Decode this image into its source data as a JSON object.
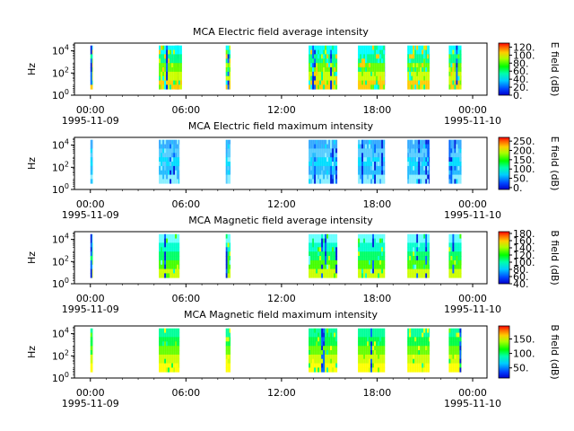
{
  "time_ticks": [
    {
      "label": "00:00",
      "date": "1995-11-09",
      "hours": 0
    },
    {
      "label": "06:00",
      "date": "",
      "hours": 6
    },
    {
      "label": "12:00",
      "date": "",
      "hours": 12
    },
    {
      "label": "18:00",
      "date": "",
      "hours": 18
    },
    {
      "label": "00:00",
      "date": "1995-11-10",
      "hours": 24
    }
  ],
  "chart_data": [
    {
      "type": "heatmap",
      "title": "MCA  Electric field average intensity",
      "ylabel": "Hz",
      "yscale": "log",
      "ylim": [
        1,
        50000
      ],
      "yticks": [
        {
          "base": "10",
          "exp": "0",
          "value": 1
        },
        {
          "base": "10",
          "exp": "2",
          "value": 100
        },
        {
          "base": "10",
          "exp": "4",
          "value": 10000
        }
      ],
      "xlim_hours": [
        -1,
        24.9
      ],
      "colorbar": {
        "label": "E field (dB)",
        "range": [
          0,
          130
        ],
        "ticks": [
          "0.",
          "20.",
          "40.",
          "60.",
          "80.",
          "100.",
          "120."
        ],
        "tick_values": [
          0,
          20,
          40,
          60,
          80,
          100,
          120
        ]
      },
      "segments": [
        [
          0,
          0.15
        ],
        [
          4.3,
          5.6
        ],
        [
          5.3,
          5.75
        ],
        [
          8.5,
          8.8
        ],
        [
          13.7,
          15.5
        ],
        [
          16.8,
          18.5
        ],
        [
          19.9,
          21.3
        ],
        [
          22.5,
          23.3
        ]
      ],
      "palette": [
        "#00ffff",
        "#00ff88",
        "#66ff00",
        "#ccff00",
        "#ffcc00"
      ],
      "noise": 0.35,
      "dark_cols": 0.05
    },
    {
      "type": "heatmap",
      "title": "MCA  Electric field maximum intensity",
      "ylabel": "Hz",
      "yscale": "log",
      "ylim": [
        1,
        50000
      ],
      "yticks": [
        {
          "base": "10",
          "exp": "0",
          "value": 1
        },
        {
          "base": "10",
          "exp": "2",
          "value": 100
        },
        {
          "base": "10",
          "exp": "4",
          "value": 10000
        }
      ],
      "xlim_hours": [
        -1,
        24.9
      ],
      "colorbar": {
        "label": "E field (dB)",
        "range": [
          -10,
          270
        ],
        "ticks": [
          "0.",
          "50.",
          "100.",
          "150.",
          "200.",
          "250."
        ],
        "tick_values": [
          0,
          50,
          100,
          150,
          200,
          250
        ]
      },
      "segments": [
        [
          0,
          0.15
        ],
        [
          4.3,
          5.6
        ],
        [
          8.5,
          8.8
        ],
        [
          13.7,
          15.5
        ],
        [
          16.8,
          18.5
        ],
        [
          19.9,
          21.3
        ],
        [
          22.5,
          23.3
        ]
      ],
      "palette": [
        "#33aaff",
        "#55ccff",
        "#00ddff",
        "#22bbff",
        "#88eeff"
      ],
      "noise": 0.3,
      "dark_cols": 0.25
    },
    {
      "type": "heatmap",
      "title": "MCA  Magnetic field average intensity",
      "ylabel": "Hz",
      "yscale": "log",
      "ylim": [
        1,
        50000
      ],
      "yticks": [
        {
          "base": "10",
          "exp": "0",
          "value": 1
        },
        {
          "base": "10",
          "exp": "2",
          "value": 100
        },
        {
          "base": "10",
          "exp": "4",
          "value": 10000
        }
      ],
      "xlim_hours": [
        -1,
        24.9
      ],
      "colorbar": {
        "label": "B field (dB)",
        "range": [
          40,
          185
        ],
        "ticks": [
          "40.",
          "60.",
          "80.",
          "100.",
          "120.",
          "140.",
          "160.",
          "180."
        ],
        "tick_values": [
          40,
          60,
          80,
          100,
          120,
          140,
          160,
          180
        ]
      },
      "segments": [
        [
          0,
          0.15
        ],
        [
          4.3,
          5.6
        ],
        [
          8.5,
          8.8
        ],
        [
          13.7,
          15.5
        ],
        [
          16.8,
          18.5
        ],
        [
          19.9,
          21.3
        ],
        [
          22.5,
          23.3
        ]
      ],
      "palette": [
        "#66ffff",
        "#00ffcc",
        "#00ff66",
        "#44ff00",
        "#ccff00"
      ],
      "noise": 0.12,
      "dark_cols": 0.12
    },
    {
      "type": "heatmap",
      "title": "MCA  Magnetic field maximum intensity",
      "ylabel": "Hz",
      "yscale": "log",
      "ylim": [
        1,
        50000
      ],
      "yticks": [
        {
          "base": "10",
          "exp": "0",
          "value": 1
        },
        {
          "base": "10",
          "exp": "2",
          "value": 100
        },
        {
          "base": "10",
          "exp": "4",
          "value": 10000
        }
      ],
      "xlim_hours": [
        -1,
        24.9
      ],
      "colorbar": {
        "label": "B field (dB)",
        "range": [
          15,
          195
        ],
        "ticks": [
          "50.",
          "100.",
          "150."
        ],
        "tick_values": [
          50,
          100,
          150
        ]
      },
      "segments": [
        [
          0,
          0.15
        ],
        [
          4.3,
          5.6
        ],
        [
          8.5,
          8.8
        ],
        [
          13.7,
          15.5
        ],
        [
          16.8,
          18.5
        ],
        [
          19.9,
          21.3
        ],
        [
          22.5,
          23.3
        ]
      ],
      "palette": [
        "#00ff99",
        "#00ff44",
        "#66ff00",
        "#ccff00",
        "#ffff00"
      ],
      "noise": 0.12,
      "dark_cols": 0.1
    }
  ]
}
